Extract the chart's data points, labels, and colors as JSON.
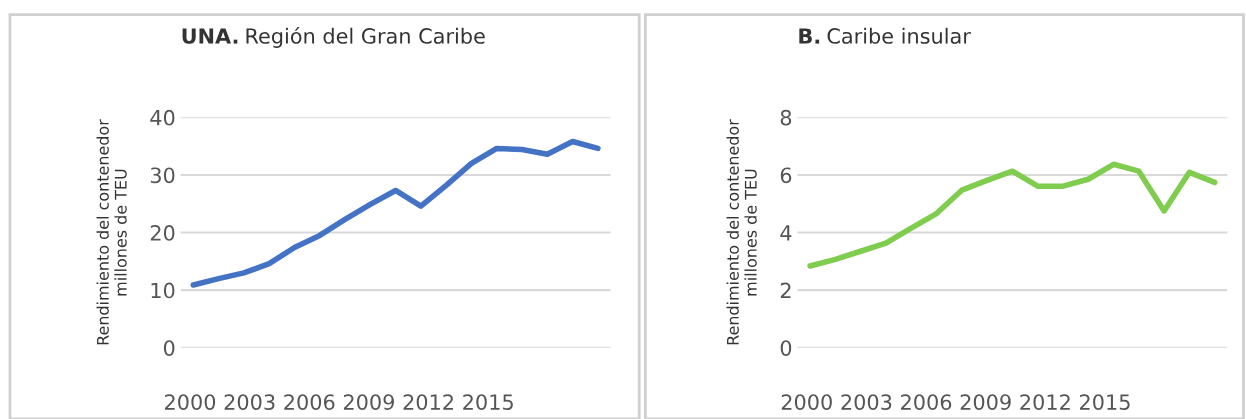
{
  "chart_data": [
    {
      "type": "line",
      "title": "UNA. Región del Gran Caribe",
      "ylabel": "Rendimiento del contenedor\nmillones de TEU",
      "categories": [
        null,
        null,
        null,
        null,
        null,
        null,
        null,
        null,
        null,
        null,
        null,
        null,
        null,
        null,
        null,
        null,
        null
      ],
      "series": [
        {
          "color": "#4472c4",
          "values": [
            10.9,
            12,
            13,
            14.6,
            17.4,
            19.5,
            22.3,
            24.9,
            27.3,
            24.6,
            28.2,
            32.0,
            34.6,
            34.4,
            33.6,
            35.8,
            34.6
          ]
        }
      ],
      "ylim": [
        0,
        40
      ],
      "yticks": [
        0,
        10,
        20,
        30,
        40
      ],
      "grid": "y",
      "marker": "none",
      "line_style": "solid",
      "annotations": [
        "2000 2003 2006 2009 2012 2015"
      ]
    },
    {
      "type": "line",
      "title": "B. Caribe insular",
      "ylabel": "Rendimiento del contenedor\nmillones de TEU",
      "categories": [
        null,
        null,
        null,
        null,
        null,
        null,
        null,
        null,
        null,
        null,
        null,
        null,
        null,
        null,
        null,
        null,
        null
      ],
      "series": [
        {
          "color": "#7fcc4f",
          "values": [
            2.84,
            3.07,
            3.35,
            3.63,
            4.15,
            4.66,
            5.47,
            5.81,
            6.13,
            5.61,
            5.61,
            5.85,
            6.37,
            6.13,
            4.75,
            6.09,
            5.74
          ]
        }
      ],
      "ylim": [
        0,
        8
      ],
      "yticks": [
        0,
        2,
        4,
        6,
        8
      ],
      "grid": "y",
      "marker": "none",
      "line_style": "solid",
      "annotations": [
        "2000 2003 2006 2009 2012 2015"
      ]
    }
  ]
}
